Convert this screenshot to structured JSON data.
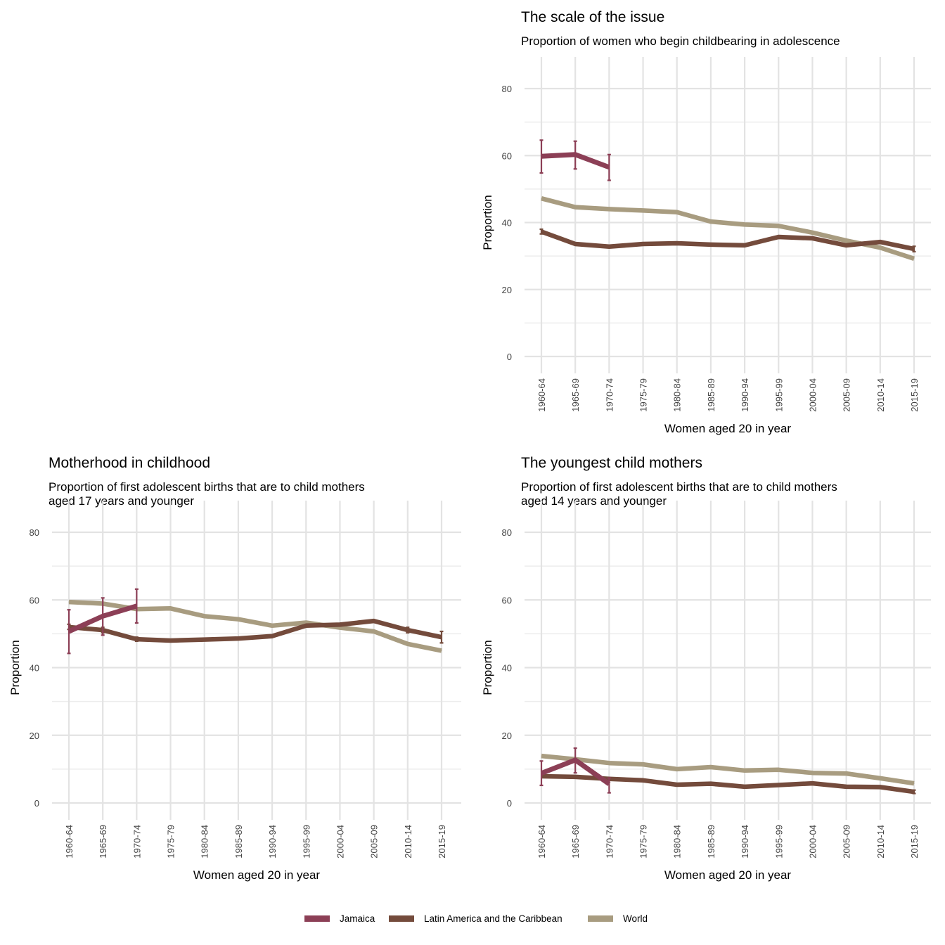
{
  "colors": {
    "Jamaica": "#8c3f56",
    "Latin America and the Caribbean": "#744b3c",
    "World": "#a89c80"
  },
  "legend": {
    "entries": [
      "Jamaica",
      "Latin America and the Caribbean",
      "World"
    ],
    "placement": "bottom-center"
  },
  "chart_data": [
    {
      "id": "scale",
      "type": "line",
      "title": "The scale of the issue",
      "subtitle": [
        "Proportion of women who begin childbearing in adolescence"
      ],
      "xlabel": "Women aged 20 in year",
      "ylabel": "Proportion",
      "ylim": [
        0,
        80
      ],
      "yticks": [
        0,
        20,
        40,
        60,
        80
      ],
      "grid": true,
      "categories": [
        "1960-64",
        "1965-69",
        "1970-74",
        "1975-79",
        "1980-84",
        "1985-89",
        "1990-94",
        "1995-99",
        "2000-04",
        "2005-09",
        "2010-14",
        "2015-19"
      ],
      "series": [
        {
          "name": "World",
          "values": [
            47.2,
            44.6,
            44.0,
            43.6,
            43.1,
            40.3,
            39.4,
            39.0,
            37.0,
            34.6,
            32.5,
            29.2
          ]
        },
        {
          "name": "Latin America and the Caribbean",
          "values": [
            37.3,
            33.6,
            32.8,
            33.6,
            33.8,
            33.4,
            33.2,
            35.7,
            35.3,
            33.2,
            34.2,
            32.1
          ],
          "errors": [
            [
              36.6,
              38.0
            ],
            null,
            null,
            null,
            null,
            null,
            null,
            null,
            null,
            null,
            null,
            [
              31.3,
              32.9
            ]
          ]
        },
        {
          "name": "Jamaica",
          "values": [
            59.8,
            60.3,
            56.5,
            null,
            null,
            null,
            null,
            null,
            null,
            null,
            null,
            null
          ],
          "errors": [
            [
              54.8,
              64.6
            ],
            [
              56.0,
              64.3
            ],
            [
              52.6,
              60.3
            ],
            null,
            null,
            null,
            null,
            null,
            null,
            null,
            null,
            null
          ]
        }
      ]
    },
    {
      "id": "motherhood",
      "type": "line",
      "title": "Motherhood in childhood",
      "subtitle": [
        "Proportion of first adolescent births that are to child mothers",
        "aged 17 years and younger"
      ],
      "xlabel": "Women aged 20 in year",
      "ylabel": "Proportion",
      "ylim": [
        0,
        80
      ],
      "yticks": [
        0,
        20,
        40,
        60,
        80
      ],
      "grid": true,
      "categories": [
        "1960-64",
        "1965-69",
        "1970-74",
        "1975-79",
        "1980-84",
        "1985-89",
        "1990-94",
        "1995-99",
        "2000-04",
        "2005-09",
        "2010-14",
        "2015-19"
      ],
      "series": [
        {
          "name": "World",
          "values": [
            59.4,
            58.9,
            57.3,
            57.5,
            55.2,
            54.3,
            52.4,
            53.3,
            51.8,
            50.7,
            47.0,
            45.0
          ]
        },
        {
          "name": "Latin America and the Caribbean",
          "values": [
            52.0,
            51.1,
            48.4,
            48.0,
            48.3,
            48.6,
            49.3,
            52.4,
            52.7,
            53.8,
            51.1,
            49.0
          ],
          "errors": [
            [
              51.3,
              52.8
            ],
            [
              50.3,
              51.9
            ],
            [
              47.8,
              49.0
            ],
            null,
            null,
            null,
            null,
            null,
            null,
            null,
            [
              50.3,
              51.9
            ],
            [
              47.3,
              50.7
            ]
          ]
        },
        {
          "name": "Jamaica",
          "values": [
            50.7,
            55.2,
            58.2,
            null,
            null,
            null,
            null,
            null,
            null,
            null,
            null,
            null
          ],
          "errors": [
            [
              44.2,
              57.1
            ],
            [
              49.6,
              60.6
            ],
            [
              53.2,
              63.2
            ],
            null,
            null,
            null,
            null,
            null,
            null,
            null,
            null,
            null
          ]
        }
      ]
    },
    {
      "id": "youngest",
      "type": "line",
      "title": "The youngest child mothers",
      "subtitle": [
        "Proportion of first adolescent births that are to child mothers",
        "aged 14 years and younger"
      ],
      "xlabel": "Women aged 20 in year",
      "ylabel": "Proportion",
      "ylim": [
        0,
        80
      ],
      "yticks": [
        0,
        20,
        40,
        60,
        80
      ],
      "grid": true,
      "categories": [
        "1960-64",
        "1965-69",
        "1970-74",
        "1975-79",
        "1980-84",
        "1985-89",
        "1990-94",
        "1995-99",
        "2000-04",
        "2005-09",
        "2010-14",
        "2015-19"
      ],
      "series": [
        {
          "name": "World",
          "values": [
            13.9,
            12.9,
            11.8,
            11.4,
            10.0,
            10.6,
            9.6,
            9.8,
            8.9,
            8.7,
            7.3,
            5.8
          ]
        },
        {
          "name": "Latin America and the Caribbean",
          "values": [
            7.9,
            7.7,
            7.1,
            6.7,
            5.4,
            5.7,
            4.8,
            5.3,
            5.8,
            4.8,
            4.7,
            3.3
          ],
          "errors": [
            null,
            null,
            null,
            null,
            null,
            null,
            null,
            null,
            null,
            null,
            null,
            [
              2.8,
              3.8
            ]
          ]
        },
        {
          "name": "Jamaica",
          "values": [
            8.8,
            12.7,
            5.6,
            null,
            null,
            null,
            null,
            null,
            null,
            null,
            null,
            null
          ],
          "errors": [
            [
              5.2,
              12.4
            ],
            [
              8.9,
              16.2
            ],
            [
              3.0,
              7.4
            ],
            null,
            null,
            null,
            null,
            null,
            null,
            null,
            null,
            null
          ]
        }
      ]
    }
  ]
}
